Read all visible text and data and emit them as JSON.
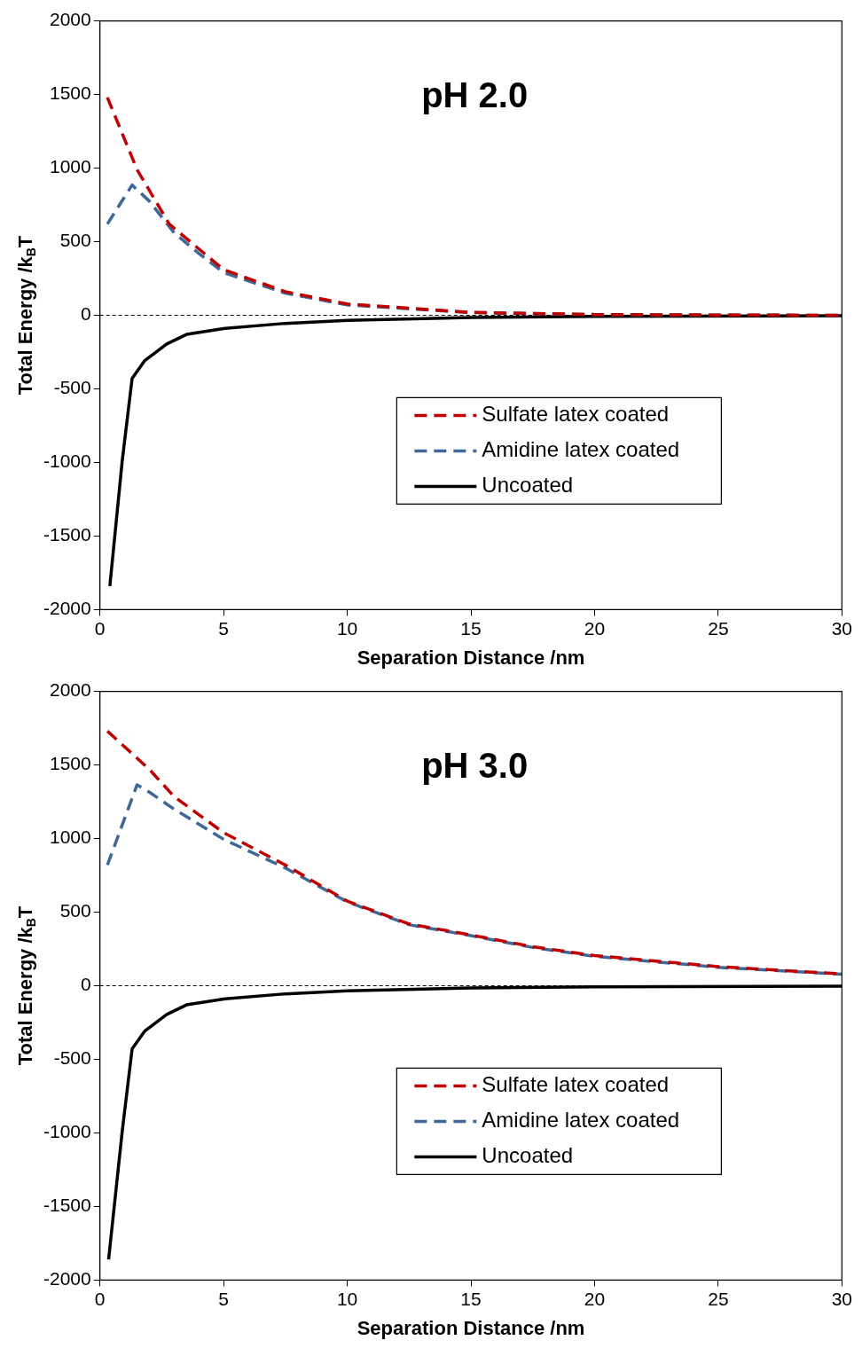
{
  "chart_data": [
    {
      "type": "line",
      "title": "pH 2.0",
      "xlabel": "Separation Distance /nm",
      "ylabel": "Total Energy /k$_{B}$T",
      "xlim": [
        0,
        30
      ],
      "xticks": [
        0,
        5,
        10,
        15,
        20,
        25,
        30
      ],
      "ylim": [
        -2000,
        2000
      ],
      "yticks": [
        -2000,
        -1500,
        -1000,
        -500,
        0,
        500,
        1000,
        1500,
        2000
      ],
      "grid": false,
      "legend": "bottom right",
      "marker": "none",
      "ref_lines": [
        {
          "axis": "y",
          "value": 0,
          "color": "#000000",
          "line_style": "dashed"
        }
      ],
      "series": [
        {
          "name": "Sulfate latex coated",
          "color": "#c00000",
          "line_style": "dashed",
          "x": [
            0.3,
            1.5,
            2.8,
            5,
            7.5,
            10,
            15,
            20,
            25,
            30
          ],
          "values": [
            1480,
            990,
            620,
            310,
            160,
            77,
            20,
            5,
            2,
            0
          ]
        },
        {
          "name": "Amidine latex coated",
          "color": "#3f6797",
          "line_style": "dashed",
          "x": [
            0.3,
            1.3,
            2,
            3,
            4,
            5,
            7.5,
            10,
            15,
            20,
            25,
            30
          ],
          "values": [
            620,
            885,
            775,
            560,
            420,
            290,
            150,
            70,
            18,
            5,
            2,
            0
          ]
        },
        {
          "name": "Uncoated",
          "color": "#000000",
          "line_style": "solid",
          "x": [
            0.4,
            0.9,
            1.3,
            1.8,
            2.7,
            3.5,
            5,
            7.5,
            10,
            15,
            20,
            30
          ],
          "values": [
            -1840,
            -990,
            -430,
            -310,
            -195,
            -130,
            -90,
            -55,
            -35,
            -15,
            -8,
            -3
          ]
        }
      ]
    },
    {
      "type": "line",
      "title": "pH 3.0",
      "xlabel": "Separation Distance /nm",
      "ylabel": "Total Energy /k$_{B}$T",
      "xlim": [
        0,
        30
      ],
      "xticks": [
        0,
        5,
        10,
        15,
        20,
        25,
        30
      ],
      "ylim": [
        -2000,
        2000
      ],
      "yticks": [
        -2000,
        -1500,
        -1000,
        -500,
        0,
        500,
        1000,
        1500,
        2000
      ],
      "grid": false,
      "legend": "bottom right",
      "marker": "none",
      "ref_lines": [
        {
          "axis": "y",
          "value": 0,
          "color": "#000000",
          "line_style": "dashed"
        }
      ],
      "series": [
        {
          "name": "Sulfate latex coated",
          "color": "#c00000",
          "line_style": "dashed",
          "x": [
            0.3,
            2,
            3,
            5,
            7.5,
            10,
            12.5,
            15,
            17.5,
            20,
            25,
            30
          ],
          "values": [
            1730,
            1470,
            1285,
            1040,
            820,
            575,
            420,
            345,
            265,
            205,
            130,
            80
          ]
        },
        {
          "name": "Amidine latex coated",
          "color": "#3f6797",
          "line_style": "dashed",
          "x": [
            0.3,
            1.5,
            2,
            3,
            5,
            7.5,
            10,
            12.5,
            15,
            17.5,
            20,
            25,
            30
          ],
          "values": [
            820,
            1365,
            1315,
            1200,
            995,
            800,
            570,
            415,
            340,
            260,
            200,
            125,
            78
          ]
        },
        {
          "name": "Uncoated",
          "color": "#000000",
          "line_style": "solid",
          "x": [
            0.35,
            0.9,
            1.3,
            1.8,
            2.7,
            3.5,
            5,
            7.5,
            10,
            15,
            20,
            30
          ],
          "values": [
            -1860,
            -990,
            -430,
            -310,
            -195,
            -130,
            -90,
            -55,
            -35,
            -15,
            -8,
            -3
          ]
        }
      ]
    }
  ]
}
